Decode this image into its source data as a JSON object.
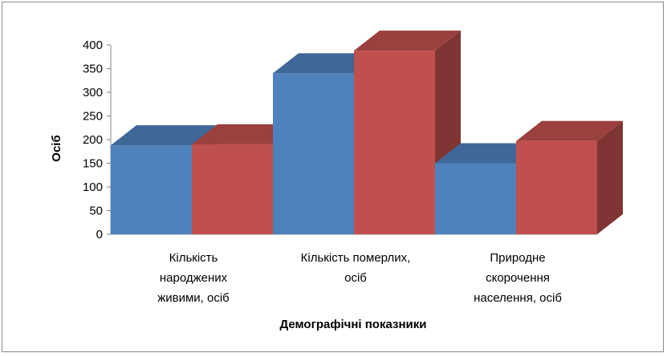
{
  "chart_data": {
    "type": "bar",
    "title": "",
    "xlabel": "Демографічні показники",
    "ylabel": "Осіб",
    "ylim": [
      0,
      400
    ],
    "yticks": [
      0,
      50,
      100,
      150,
      200,
      250,
      300,
      350,
      400
    ],
    "categories": [
      [
        "Кількість",
        "народжених",
        "живими, осіб"
      ],
      [
        "Кількість померлих,",
        "осіб"
      ],
      [
        "Природне",
        "скорочення",
        "населення, осіб"
      ]
    ],
    "series": [
      {
        "values": [
          188,
          340,
          150
        ],
        "color": "#4f81bd"
      },
      {
        "values": [
          190,
          388,
          197
        ],
        "color": "#c0504d"
      }
    ],
    "legend": "none",
    "grid": false,
    "three_d": true
  }
}
